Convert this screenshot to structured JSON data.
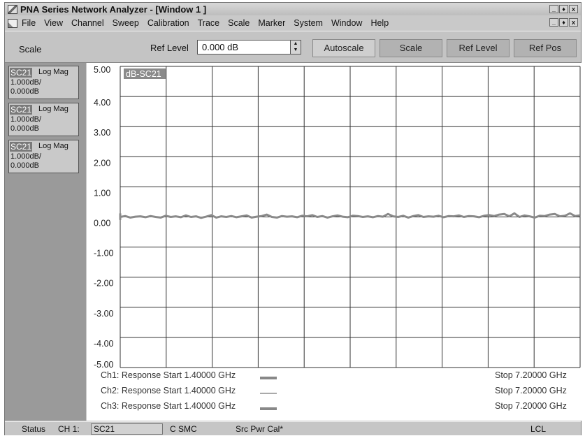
{
  "window": {
    "title": "PNA Series Network Analyzer - [Window 1 ]",
    "title_buttons": [
      "_",
      "♦",
      "x"
    ],
    "doc_buttons": [
      "_",
      "♦",
      "x"
    ]
  },
  "menu": [
    "File",
    "View",
    "Channel",
    "Sweep",
    "Calibration",
    "Trace",
    "Scale",
    "Marker",
    "System",
    "Window",
    "Help"
  ],
  "toolbar": {
    "section_label": "Scale",
    "ref_level_label": "Ref Level",
    "ref_level_value": "0.000 dB",
    "buttons": [
      "Autoscale",
      "Scale",
      "Ref Level",
      "Ref Pos"
    ]
  },
  "traces": [
    {
      "name": "SC21",
      "format": "Log Mag",
      "scale": "1.000dB/",
      "ref": "0.000dB"
    },
    {
      "name": "SC21",
      "format": "Log Mag",
      "scale": "1.000dB/",
      "ref": "0.000dB"
    },
    {
      "name": "SC21",
      "format": "Log Mag",
      "scale": "1.000dB/",
      "ref": "0.000dB"
    }
  ],
  "plot": {
    "trace_label": "dB-SC21",
    "y_ticks": [
      "5.00",
      "4.00",
      "3.00",
      "2.00",
      "1.00",
      "0.00",
      "-1.00",
      "-2.00",
      "-3.00",
      "-4.00",
      "-5.00"
    ]
  },
  "chart_data": {
    "type": "line",
    "x_divisions": 10,
    "ylim": [
      -5,
      5
    ],
    "x_range_ghz": [
      1.4,
      7.2
    ],
    "series": [
      {
        "name": "dB-SC21",
        "values": [
          0.0,
          0.03,
          -0.02,
          0.01,
          0.02,
          -0.01,
          0.03,
          0.0,
          -0.02,
          0.04,
          0.0,
          0.02,
          -0.01,
          0.05,
          0.0,
          0.02,
          -0.03,
          0.01,
          0.06,
          -0.02,
          0.02,
          0.0,
          0.03,
          -0.01,
          0.02,
          0.05,
          -0.02,
          0.01,
          0.03,
          0.08,
          0.0,
          -0.02,
          0.03,
          0.01,
          0.02,
          -0.01,
          0.04,
          0.02,
          0.06,
          0.0,
          0.03,
          -0.02,
          0.02,
          0.05,
          0.01,
          -0.01,
          0.04,
          0.03,
          0.0,
          0.02,
          -0.01,
          0.03,
          0.01,
          0.1,
          0.02,
          0.0,
          0.04,
          -0.02,
          0.03,
          0.06,
          0.0,
          0.02,
          0.01,
          0.04,
          -0.01,
          0.03,
          0.02,
          0.05,
          0.0,
          0.03,
          0.02,
          -0.01,
          0.04,
          0.06,
          0.03,
          0.08,
          0.1,
          0.02,
          0.12,
          0.0,
          0.05,
          0.02,
          -0.02,
          0.04,
          0.03,
          0.08,
          0.1,
          0.02,
          0.04,
          0.12,
          0.03,
          0.05
        ]
      }
    ]
  },
  "legend": [
    {
      "text": "Ch1: Response Start  1.40000 GHz",
      "stop": "Stop  7.20000 GHz"
    },
    {
      "text": "Ch2: Response Start  1.40000 GHz",
      "stop": "Stop  7.20000 GHz"
    },
    {
      "text": "Ch3: Response Start  1.40000 GHz",
      "stop": "Stop  7.20000 GHz"
    }
  ],
  "status": {
    "label": "Status",
    "channel": "CH 1:",
    "measurement": "SC21",
    "cal": "C SMC",
    "src": "Src Pwr Cal*",
    "mode": "LCL"
  }
}
